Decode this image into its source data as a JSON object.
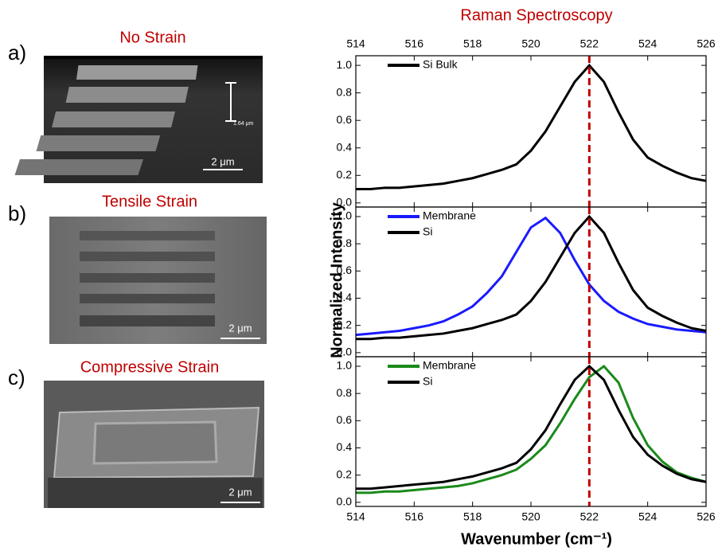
{
  "panels": [
    {
      "label": "a)",
      "title": "No Strain",
      "scale_bar": "2 μm",
      "height_label": "1.64 μm"
    },
    {
      "label": "b)",
      "title": "Tensile Strain",
      "scale_bar": "2 μm"
    },
    {
      "label": "c)",
      "title": "Compressive Strain",
      "scale_bar": "2 μm"
    }
  ],
  "figure": {
    "title": "Raman Spectroscopy",
    "x_label": "Wavenumber (cm⁻¹)",
    "y_label": "Normalized Intensity"
  },
  "chart_data": [
    {
      "type": "line",
      "xtick_labels": "top",
      "legend": "upper left",
      "vline": {
        "value": 522,
        "color": "#c00000"
      },
      "x": [
        514,
        514.5,
        515,
        515.5,
        516,
        516.5,
        517,
        517.5,
        518,
        518.5,
        519,
        519.5,
        520,
        520.5,
        521,
        521.5,
        522,
        522.5,
        523,
        523.5,
        524,
        524.5,
        525,
        525.5,
        526
      ],
      "series": [
        {
          "name": "Si Bulk",
          "color": "#000000",
          "values": [
            0.1,
            0.1,
            0.11,
            0.11,
            0.12,
            0.13,
            0.14,
            0.16,
            0.18,
            0.21,
            0.24,
            0.28,
            0.38,
            0.52,
            0.7,
            0.88,
            1.0,
            0.88,
            0.66,
            0.46,
            0.33,
            0.27,
            0.22,
            0.18,
            0.16
          ]
        }
      ],
      "xlim": [
        514,
        526
      ],
      "xticks": [
        514,
        516,
        518,
        520,
        522,
        524,
        526
      ],
      "ylim": [
        -0.03,
        1.07
      ],
      "yticks": [
        {
          "value": 0,
          "label": "0.0"
        },
        {
          "value": 0.2,
          "label": "0.2"
        },
        {
          "value": 0.4,
          "label": "0.4"
        },
        {
          "value": 0.6,
          "label": "0.6"
        },
        {
          "value": 0.8,
          "label": "0.8"
        },
        {
          "value": 1,
          "label": "1.0"
        }
      ]
    },
    {
      "type": "line",
      "legend": "upper left",
      "vline": {
        "value": 522,
        "color": "#c00000"
      },
      "x": [
        514,
        514.5,
        515,
        515.5,
        516,
        516.5,
        517,
        517.5,
        518,
        518.5,
        519,
        519.5,
        520,
        520.5,
        521,
        521.5,
        522,
        522.5,
        523,
        523.5,
        524,
        524.5,
        525,
        525.5,
        526
      ],
      "series": [
        {
          "name": "Membrane",
          "color": "#1a1aff",
          "values": [
            0.13,
            0.14,
            0.15,
            0.16,
            0.18,
            0.2,
            0.23,
            0.28,
            0.34,
            0.44,
            0.56,
            0.74,
            0.92,
            0.99,
            0.88,
            0.68,
            0.5,
            0.38,
            0.3,
            0.25,
            0.21,
            0.19,
            0.17,
            0.16,
            0.15
          ]
        },
        {
          "name": "Si",
          "color": "#000000",
          "values": [
            0.1,
            0.1,
            0.11,
            0.11,
            0.12,
            0.13,
            0.14,
            0.16,
            0.18,
            0.21,
            0.24,
            0.28,
            0.38,
            0.52,
            0.7,
            0.88,
            1.0,
            0.88,
            0.66,
            0.46,
            0.33,
            0.27,
            0.22,
            0.18,
            0.16
          ]
        }
      ],
      "xlim": [
        514,
        526
      ],
      "xticks": [
        514,
        516,
        518,
        520,
        522,
        524,
        526
      ],
      "ylim": [
        -0.03,
        1.07
      ],
      "yticks": [
        {
          "value": 0,
          "label": "0.0"
        },
        {
          "value": 0.2,
          "label": "0.2"
        },
        {
          "value": 0.4,
          "label": "0.4"
        },
        {
          "value": 0.6,
          "label": "0.6"
        },
        {
          "value": 0.8,
          "label": "0.8"
        },
        {
          "value": 1,
          "label": "1.0"
        }
      ]
    },
    {
      "type": "line",
      "xtick_labels": "bottom",
      "legend": "upper left",
      "vline": {
        "value": 522,
        "color": "#c00000"
      },
      "x": [
        514,
        514.5,
        515,
        515.5,
        516,
        516.5,
        517,
        517.5,
        518,
        518.5,
        519,
        519.5,
        520,
        520.5,
        521,
        521.5,
        522,
        522.5,
        523,
        523.5,
        524,
        524.5,
        525,
        525.5,
        526
      ],
      "series": [
        {
          "name": "Membrane",
          "color": "#1a8a1a",
          "values": [
            0.07,
            0.07,
            0.08,
            0.08,
            0.09,
            0.1,
            0.11,
            0.12,
            0.14,
            0.17,
            0.2,
            0.24,
            0.32,
            0.42,
            0.58,
            0.76,
            0.92,
            1.0,
            0.88,
            0.62,
            0.42,
            0.3,
            0.22,
            0.18,
            0.15
          ]
        },
        {
          "name": "Si",
          "color": "#000000",
          "values": [
            0.1,
            0.1,
            0.11,
            0.12,
            0.13,
            0.14,
            0.15,
            0.17,
            0.19,
            0.22,
            0.25,
            0.29,
            0.39,
            0.53,
            0.72,
            0.9,
            1.0,
            0.9,
            0.68,
            0.48,
            0.35,
            0.27,
            0.21,
            0.17,
            0.15
          ]
        }
      ],
      "xlim": [
        514,
        526
      ],
      "xticks": [
        514,
        516,
        518,
        520,
        522,
        524,
        526
      ],
      "ylim": [
        -0.03,
        1.07
      ],
      "yticks": [
        {
          "value": 0,
          "label": "0.0"
        },
        {
          "value": 0.2,
          "label": "0.2"
        },
        {
          "value": 0.4,
          "label": "0.4"
        },
        {
          "value": 0.6,
          "label": "0.6"
        },
        {
          "value": 0.8,
          "label": "0.8"
        },
        {
          "value": 1,
          "label": "1.0"
        }
      ]
    }
  ]
}
